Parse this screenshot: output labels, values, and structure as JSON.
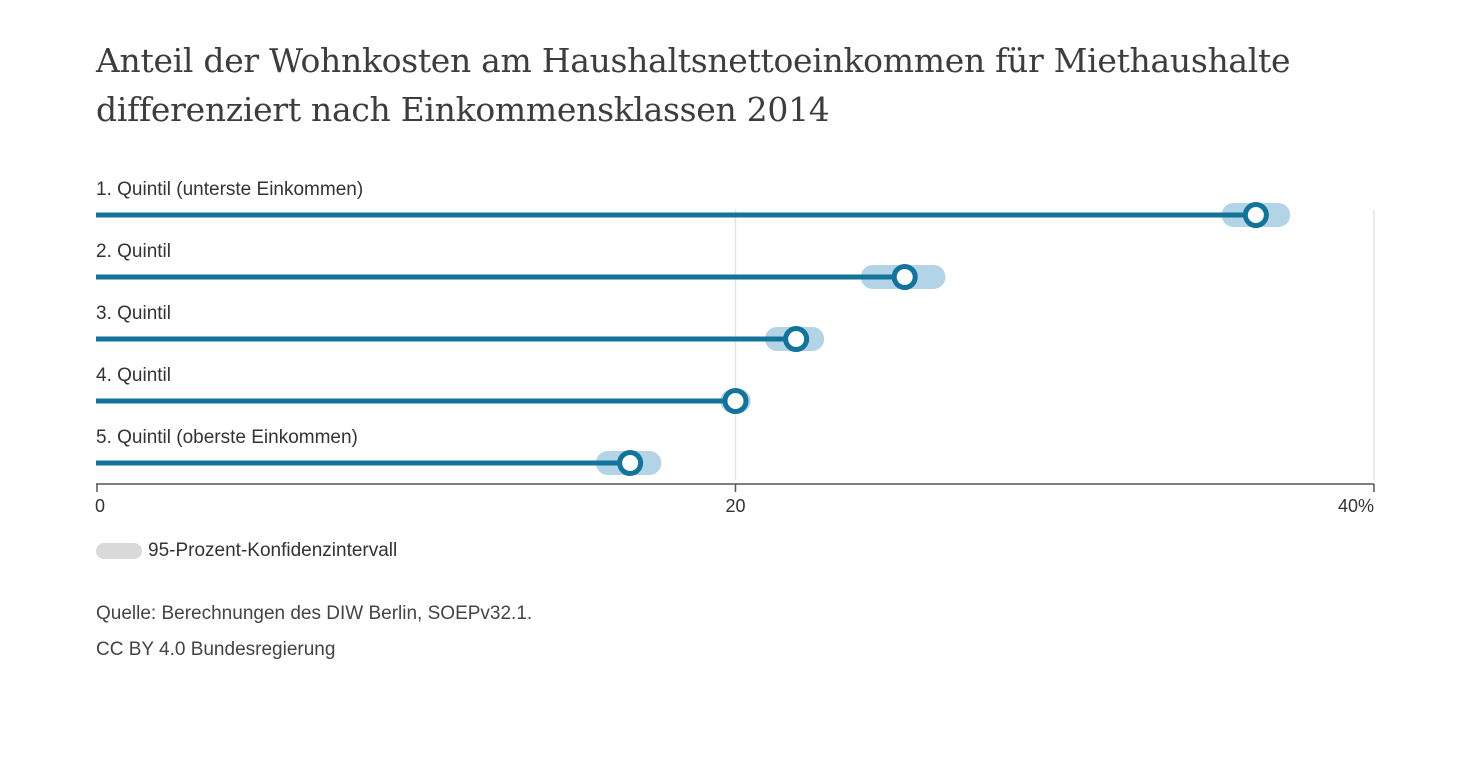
{
  "title_lines": [
    "Anteil der Wohnkosten am Haushaltsnettoeinkommen für Miethaushalte",
    "differenziert nach Einkommensklassen 2014"
  ],
  "legend": {
    "label": "95-Prozent-Konfidenzintervall",
    "color": "#d9d9d9"
  },
  "footer": {
    "source": "Quelle: Berechnungen des DIW Berlin, SOEPv32.1.",
    "license": "CC BY 4.0 Bundesregierung"
  },
  "colors": {
    "bar": "#14739b",
    "ci": "#b3d4e6",
    "grid": "#e2e2e2"
  },
  "chart_data": {
    "type": "bar",
    "orientation": "horizontal",
    "title": "Anteil der Wohnkosten am Haushaltsnettoeinkommen für Miethaushalte differenziert nach Einkommensklassen 2014",
    "categories": [
      "1. Quintil (unterste Einkommen)",
      "2. Quintil",
      "3. Quintil",
      "4. Quintil",
      "5. Quintil (oberste Einkommen)"
    ],
    "values": [
      36.3,
      25.3,
      21.9,
      20.0,
      16.7
    ],
    "ci_low": [
      35.6,
      24.3,
      21.3,
      19.9,
      16.0
    ],
    "ci_high": [
      37.0,
      26.2,
      22.4,
      20.1,
      17.3
    ],
    "xlim": [
      0,
      40
    ],
    "xticks": [
      0,
      20,
      40
    ],
    "xtick_labels": [
      "0",
      "20",
      "40%"
    ],
    "grid": true
  }
}
